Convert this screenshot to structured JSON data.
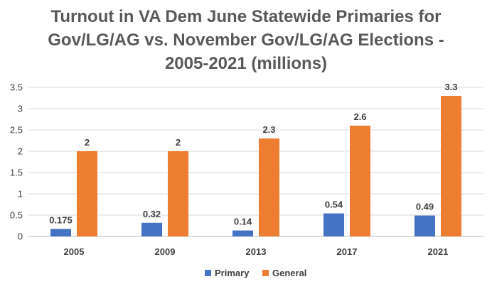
{
  "chart_data": {
    "type": "bar",
    "title": "Turnout in VA Dem June Statewide Primaries for Gov/LG/AG vs. November Gov/LG/AG Elections - 2005-2021 (millions)",
    "title_lines": [
      "Turnout in VA Dem June Statewide Primaries for",
      "Gov/LG/AG vs. November Gov/LG/AG Elections -",
      "2005-2021 (millions)"
    ],
    "categories": [
      "2005",
      "2009",
      "2013",
      "2017",
      "2021"
    ],
    "series": [
      {
        "name": "Primary",
        "color": "#4472c4",
        "values": [
          0.175,
          0.32,
          0.14,
          0.54,
          0.49
        ],
        "labels": [
          "0.175",
          "0.32",
          "0.14",
          "0.54",
          "0.49"
        ]
      },
      {
        "name": "General",
        "color": "#ed7d31",
        "values": [
          2,
          2,
          2.3,
          2.6,
          3.3
        ],
        "labels": [
          "2",
          "2",
          "2.3",
          "2.6",
          "3.3"
        ]
      }
    ],
    "ylim": [
      0,
      3.5
    ],
    "yticks": [
      "0",
      "0.5",
      "1",
      "1.5",
      "2",
      "2.5",
      "3",
      "3.5"
    ],
    "xlabel": "",
    "ylabel": "",
    "grid": true,
    "legend_position": "bottom"
  }
}
